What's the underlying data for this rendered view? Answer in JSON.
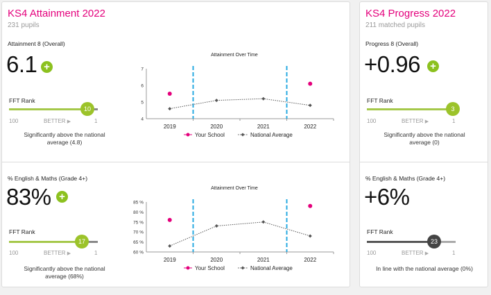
{
  "attainment": {
    "title": "KS4 Attainment 2022",
    "subtitle": "231 pupils",
    "a8": {
      "label": "Attainment 8 (Overall)",
      "value": "6.1",
      "plus": "+",
      "fft_label": "FFT Rank",
      "rank": "10",
      "rank_fraction": 0.85,
      "scale_left": "100",
      "scale_mid": "BETTER",
      "scale_arrow": "▶",
      "scale_right": "1",
      "description": "Significantly above the national average (4.8)"
    },
    "em": {
      "label": "% English & Maths (Grade 4+)",
      "value": "83%",
      "plus": "+",
      "fft_label": "FFT Rank",
      "rank": "17",
      "rank_fraction": 0.8,
      "scale_left": "100",
      "scale_mid": "BETTER",
      "scale_arrow": "▶",
      "scale_right": "1",
      "description": "Significantly above the national average (68%)"
    }
  },
  "progress": {
    "title": "KS4 Progress 2022",
    "subtitle": "211 matched pupils",
    "p8": {
      "label": "Progress 8 (Overall)",
      "value": "+0.96",
      "plus": "+",
      "fft_label": "FFT Rank",
      "rank": "3",
      "rank_fraction": 0.95,
      "scale_left": "100",
      "scale_mid": "BETTER",
      "scale_arrow": "▶",
      "scale_right": "1",
      "description": "Significantly above the national average (0)"
    },
    "em": {
      "label": "% English & Maths (Grade 4+)",
      "value": "+6%",
      "fft_label": "FFT Rank",
      "rank": "23",
      "rank_fraction": 0.75,
      "scale_left": "100",
      "scale_mid": "BETTER",
      "scale_arrow": "▶",
      "scale_right": "1",
      "description": "In line with the national average (0%)"
    }
  },
  "colors": {
    "magenta": "#e4007c",
    "green": "#8cc11f",
    "dash": "#29abe2",
    "national": "#555555"
  },
  "chart_data": [
    {
      "type": "line",
      "title": "Attainment Over Time",
      "categories": [
        "2019",
        "2020",
        "2021",
        "2022"
      ],
      "ylim": [
        4,
        7
      ],
      "yticks": [
        "4",
        "5",
        "6",
        "7"
      ],
      "series": [
        {
          "name": "Your School",
          "style": "points",
          "values": [
            5.5,
            null,
            null,
            6.1
          ]
        },
        {
          "name": "National Average",
          "style": "dotted-line",
          "values": [
            4.6,
            5.1,
            5.2,
            4.8
          ]
        }
      ],
      "legend": "bottom"
    },
    {
      "type": "line",
      "title": "Attainment Over Time",
      "categories": [
        "2019",
        "2020",
        "2021",
        "2022"
      ],
      "ylim": [
        60,
        85
      ],
      "yticks": [
        "60 %",
        "65 %",
        "70 %",
        "75 %",
        "80 %",
        "85 %"
      ],
      "series": [
        {
          "name": "Your School",
          "style": "points",
          "values": [
            76,
            null,
            null,
            83
          ]
        },
        {
          "name": "National Average",
          "style": "dotted-line",
          "values": [
            63,
            73,
            75,
            68
          ]
        }
      ],
      "legend": "bottom"
    }
  ]
}
